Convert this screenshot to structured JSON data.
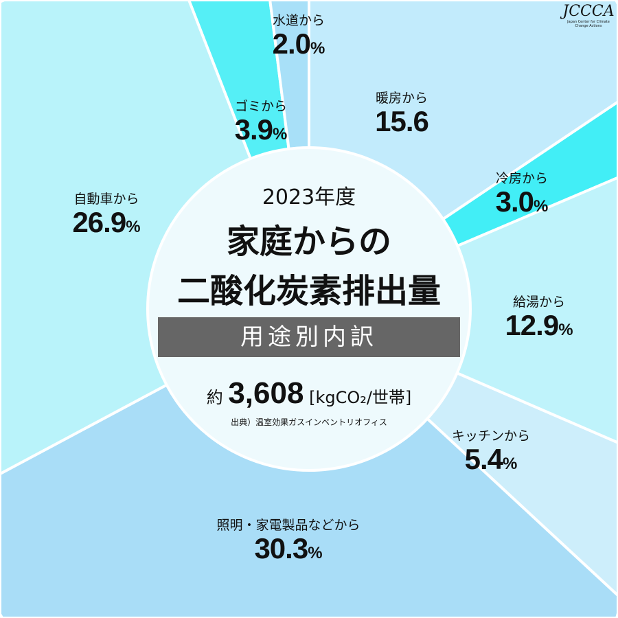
{
  "chart_data": {
    "type": "pie",
    "donut": true,
    "categories": [
      "暖房から",
      "冷房から",
      "給湯から",
      "キッチンから",
      "照明・家電製品などから",
      "自動車から",
      "ゴミから",
      "水道から"
    ],
    "values": [
      15.6,
      3.0,
      12.9,
      5.4,
      30.3,
      26.9,
      3.9,
      2.0
    ],
    "value_labels": [
      "15.6",
      "3.0",
      "12.9",
      "5.4",
      "30.3",
      "26.9",
      "3.9",
      "2.0"
    ],
    "show_pct": [
      false,
      true,
      true,
      true,
      true,
      true,
      true,
      true
    ],
    "pct_symbol": "%",
    "colors": [
      "#c2ebfc",
      "#42eef6",
      "#bff3fb",
      "#cdeefb",
      "#a9ddf7",
      "#b9f3fa",
      "#55eff6",
      "#a8e0f8"
    ],
    "start": "top",
    "direction": "clockwise",
    "title": "2023年度",
    "subtitle_lines": [
      "家庭からの",
      "二酸化炭素排出量"
    ]
  },
  "center": {
    "breakdown_label": "用途別内訳",
    "total_prefix": "約",
    "total_value": "3,608",
    "total_unit": "[kgCO₂/世帯]",
    "source": "出典）温室効果ガスインベントリオフィス"
  },
  "logo": {
    "text": "JCCCA",
    "subtext": "Japan Center for Climate Change Actions"
  }
}
